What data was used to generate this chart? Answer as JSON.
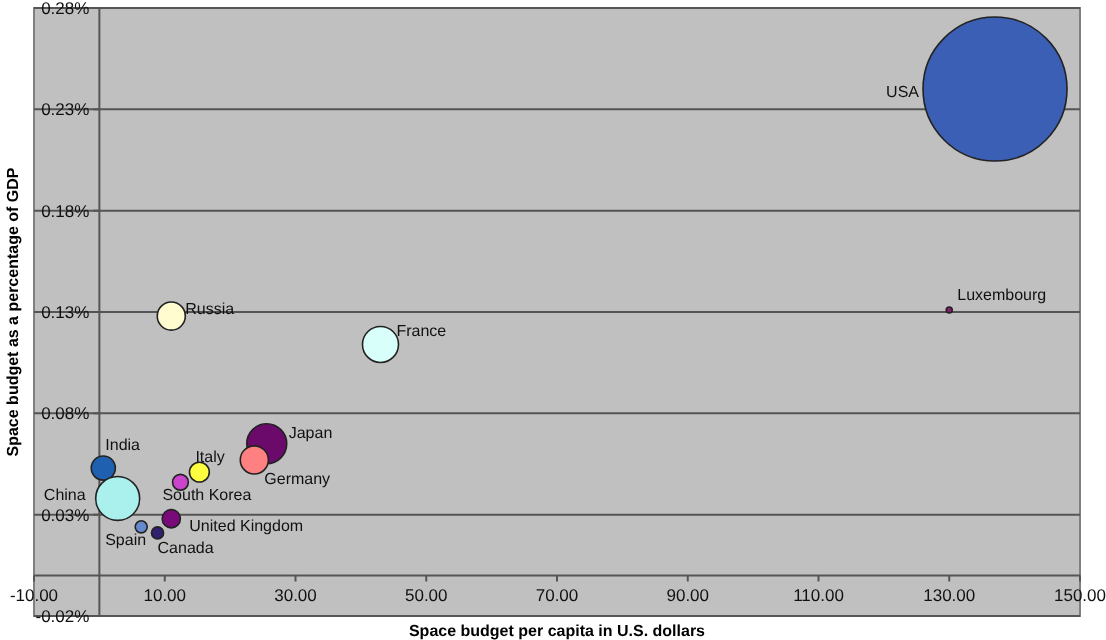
{
  "chart_data": {
    "type": "bubble",
    "xlabel": "Space budget per capita in U.S. dollars",
    "ylabel": "Space budget as a percentage of GDP",
    "xlim": [
      -10,
      150
    ],
    "ylim": [
      -0.02,
      0.28
    ],
    "xticks": [
      {
        "value": -10,
        "label": "-10.00"
      },
      {
        "value": 10,
        "label": "10.00"
      },
      {
        "value": 30,
        "label": "30.00"
      },
      {
        "value": 50,
        "label": "50.00"
      },
      {
        "value": 70,
        "label": "70.00"
      },
      {
        "value": 90,
        "label": "90.00"
      },
      {
        "value": 110,
        "label": "110.00"
      },
      {
        "value": 130,
        "label": "130.00"
      },
      {
        "value": 150,
        "label": "150.00"
      }
    ],
    "yticks": [
      {
        "value": -0.02,
        "label": "-0.02%"
      },
      {
        "value": 0.03,
        "label": "0.03%"
      },
      {
        "value": 0.08,
        "label": "0.08%"
      },
      {
        "value": 0.13,
        "label": "0.13%"
      },
      {
        "value": 0.18,
        "label": "0.18%"
      },
      {
        "value": 0.23,
        "label": "0.23%"
      },
      {
        "value": 0.28,
        "label": "0.28%"
      }
    ],
    "grid": "y",
    "legend": false,
    "series": [
      {
        "name": "USA",
        "color": "#3a5fb5",
        "x": [
          137
        ],
        "values": [
          0.24
        ],
        "sizes": [
          1
        ]
      },
      {
        "name": "Luxembourg",
        "color": "#8b1a6b",
        "x": [
          130
        ],
        "values": [
          0.131
        ],
        "sizes": [
          0.0015
        ]
      },
      {
        "name": "Russia",
        "color": "#fffdd0",
        "x": [
          11
        ],
        "values": [
          0.128
        ],
        "sizes": [
          0.038
        ]
      },
      {
        "name": "France",
        "color": "#d9fffa",
        "x": [
          43
        ],
        "values": [
          0.114
        ],
        "sizes": [
          0.0625
        ]
      },
      {
        "name": "Japan",
        "color": "#6b0a6b",
        "x": [
          25.6
        ],
        "values": [
          0.065
        ],
        "sizes": [
          0.077
        ]
      },
      {
        "name": "Germany",
        "color": "#ff8080",
        "x": [
          23.7
        ],
        "values": [
          0.057
        ],
        "sizes": [
          0.038
        ]
      },
      {
        "name": "India",
        "color": "#2060b0",
        "x": [
          0.6
        ],
        "values": [
          0.053
        ],
        "sizes": [
          0.028
        ]
      },
      {
        "name": "Italy",
        "color": "#ffff40",
        "x": [
          15.3
        ],
        "values": [
          0.051
        ],
        "sizes": [
          0.019
        ]
      },
      {
        "name": "South Korea",
        "color": "#cc44cc",
        "x": [
          12.4
        ],
        "values": [
          0.046
        ],
        "sizes": [
          0.012
        ]
      },
      {
        "name": "China",
        "color": "#aaf0ec",
        "x": [
          2.8
        ],
        "values": [
          0.038
        ],
        "sizes": [
          0.093
        ]
      },
      {
        "name": "United Kingdom",
        "color": "#7a0a7a",
        "x": [
          11
        ],
        "values": [
          0.028
        ],
        "sizes": [
          0.016
        ]
      },
      {
        "name": "Spain",
        "color": "#6688cc",
        "x": [
          6.4
        ],
        "values": [
          0.024
        ],
        "sizes": [
          0.007
        ]
      },
      {
        "name": "Canada",
        "color": "#302070",
        "x": [
          8.9
        ],
        "values": [
          0.021
        ],
        "sizes": [
          0.007
        ]
      }
    ]
  }
}
